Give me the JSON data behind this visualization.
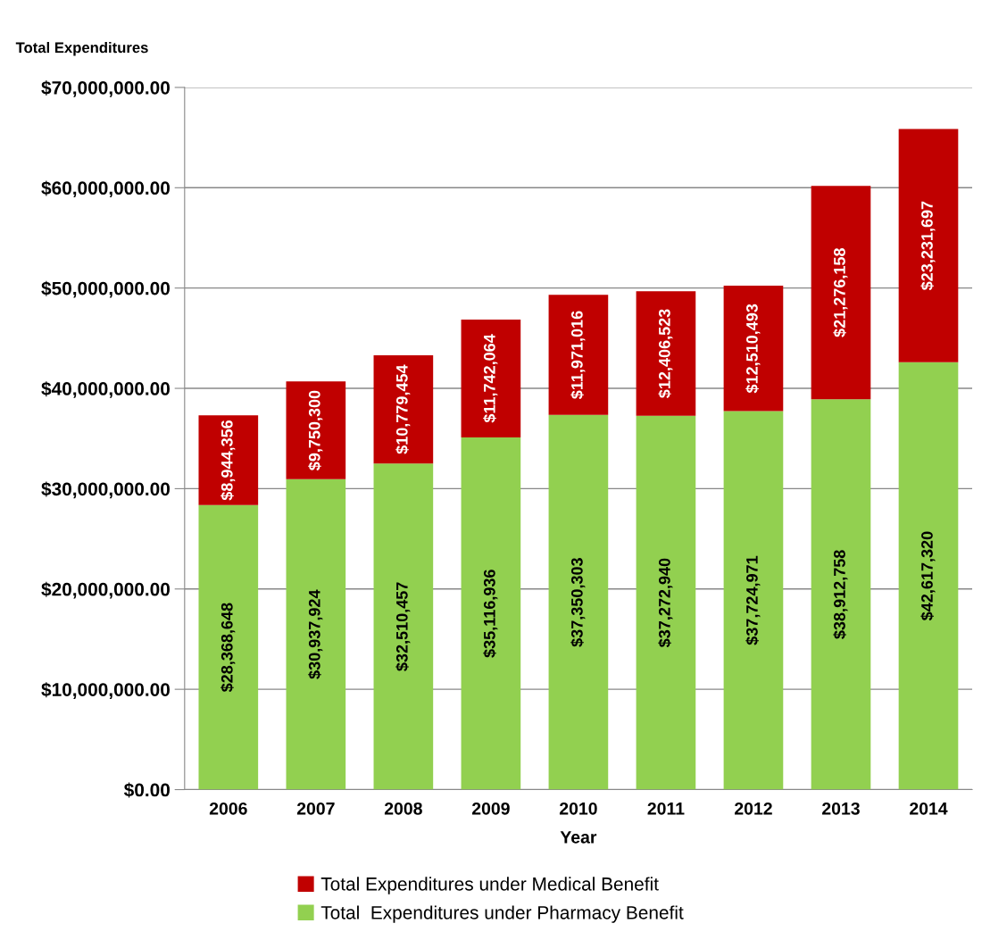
{
  "chart_data": {
    "type": "bar",
    "stacked": true,
    "ylabel": "Total Expenditures",
    "xlabel": "Year",
    "categories": [
      "2006",
      "2007",
      "2008",
      "2009",
      "2010",
      "2011",
      "2012",
      "2013",
      "2014"
    ],
    "series": [
      {
        "name": "Total  Expenditures under Pharmacy Benefit",
        "color": "#92d050",
        "values": [
          28368648,
          30937924,
          32510457,
          35116936,
          37350303,
          37272940,
          37724971,
          38912758,
          42617320
        ],
        "value_labels": [
          "$28,368,648",
          "$30,937,924",
          "$32,510,457",
          "$35,116,936",
          "$37,350,303",
          "$37,272,940",
          "$37,724,971",
          "$38,912,758",
          "$42,617,320"
        ]
      },
      {
        "name": "Total Expenditures under Medical Benefit",
        "color": "#c00000",
        "values": [
          8944356,
          9750300,
          10779454,
          11742064,
          11971016,
          12406523,
          12510493,
          21276158,
          23231697
        ],
        "value_labels": [
          "$8,944,356",
          "$9,750,300",
          "$10,779,454",
          "$11,742,064",
          "$11,971,016",
          "$12,406,523",
          "$12,510,493",
          "$21,276,158",
          "$23,231,697"
        ]
      }
    ],
    "ylim": [
      0,
      70000000
    ],
    "yticks": [
      {
        "value": 0,
        "label": "$0.00"
      },
      {
        "value": 10000000,
        "label": "$10,000,000.00"
      },
      {
        "value": 20000000,
        "label": "$20,000,000.00"
      },
      {
        "value": 30000000,
        "label": "$30,000,000.00"
      },
      {
        "value": 40000000,
        "label": "$40,000,000.00"
      },
      {
        "value": 50000000,
        "label": "$50,000,000.00"
      },
      {
        "value": 60000000,
        "label": "$60,000,000.00"
      },
      {
        "value": 70000000,
        "label": "$70,000,000.00"
      }
    ],
    "grid": "y",
    "legend": "bottom"
  }
}
